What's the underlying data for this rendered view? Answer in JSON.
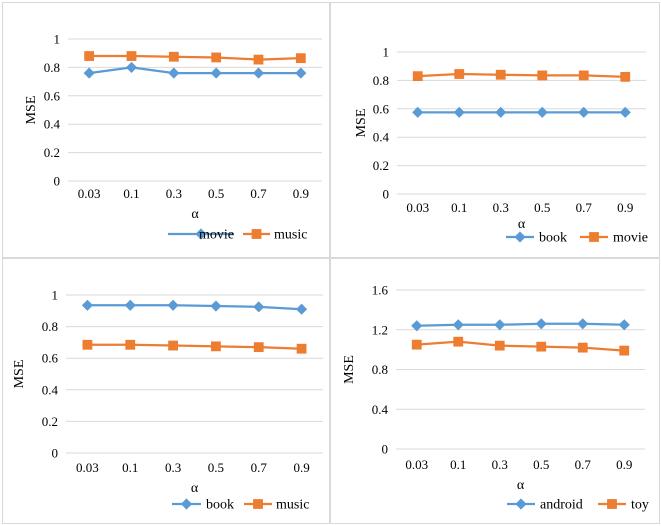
{
  "figure_title": "",
  "chart_data": [
    {
      "type": "line",
      "title": "",
      "xlabel": "α",
      "ylabel": "MSE",
      "categories": [
        "0.03",
        "0.1",
        "0.3",
        "0.5",
        "0.7",
        "0.9"
      ],
      "ylim": [
        0,
        1
      ],
      "yticks": [
        "0",
        "0.2",
        "0.4",
        "0.6",
        "0.8",
        "1"
      ],
      "grid": "horizontal",
      "legend_position": "bottom-right",
      "series": [
        {
          "name": "movie",
          "color": "#5b9bd5",
          "marker": "diamond",
          "values": [
            0.76,
            0.8,
            0.76,
            0.76,
            0.76,
            0.76
          ]
        },
        {
          "name": "music",
          "color": "#ed7d31",
          "marker": "square",
          "values": [
            0.88,
            0.88,
            0.875,
            0.87,
            0.855,
            0.865
          ]
        }
      ]
    },
    {
      "type": "line",
      "title": "",
      "xlabel": "α",
      "ylabel": "MSE",
      "categories": [
        "0.03",
        "0.1",
        "0.3",
        "0.5",
        "0.7",
        "0.9"
      ],
      "ylim": [
        0,
        1
      ],
      "yticks": [
        "0",
        "0.2",
        "0.4",
        "0.6",
        "0.8",
        "1"
      ],
      "grid": "horizontal",
      "legend_position": "bottom-right",
      "series": [
        {
          "name": "book",
          "color": "#5b9bd5",
          "marker": "diamond",
          "values": [
            0.575,
            0.575,
            0.575,
            0.575,
            0.575,
            0.575
          ]
        },
        {
          "name": "movie",
          "color": "#ed7d31",
          "marker": "square",
          "values": [
            0.83,
            0.845,
            0.84,
            0.835,
            0.835,
            0.825
          ]
        }
      ]
    },
    {
      "type": "line",
      "title": "",
      "xlabel": "α",
      "ylabel": "MSE",
      "categories": [
        "0.03",
        "0.1",
        "0.3",
        "0.5",
        "0.7",
        "0.9"
      ],
      "ylim": [
        0,
        1
      ],
      "yticks": [
        "0",
        "0.2",
        "0.4",
        "0.6",
        "0.8",
        "1"
      ],
      "grid": "horizontal",
      "legend_position": "bottom-right",
      "series": [
        {
          "name": "book",
          "color": "#5b9bd5",
          "marker": "diamond",
          "values": [
            0.935,
            0.935,
            0.935,
            0.93,
            0.925,
            0.91
          ]
        },
        {
          "name": "music",
          "color": "#ed7d31",
          "marker": "square",
          "values": [
            0.685,
            0.685,
            0.68,
            0.675,
            0.67,
            0.66
          ]
        }
      ]
    },
    {
      "type": "line",
      "title": "",
      "xlabel": "α",
      "ylabel": "MSE",
      "categories": [
        "0.03",
        "0.1",
        "0.3",
        "0.5",
        "0.7",
        "0.9"
      ],
      "ylim": [
        0,
        1.6
      ],
      "yticks": [
        "0",
        "0.4",
        "0.8",
        "1.2",
        "1.6"
      ],
      "grid": "horizontal",
      "legend_position": "bottom-right",
      "series": [
        {
          "name": "android",
          "color": "#5b9bd5",
          "marker": "diamond",
          "values": [
            1.24,
            1.25,
            1.25,
            1.26,
            1.26,
            1.25
          ]
        },
        {
          "name": "toy",
          "color": "#ed7d31",
          "marker": "square",
          "values": [
            1.05,
            1.08,
            1.04,
            1.03,
            1.02,
            0.99
          ]
        }
      ]
    }
  ]
}
